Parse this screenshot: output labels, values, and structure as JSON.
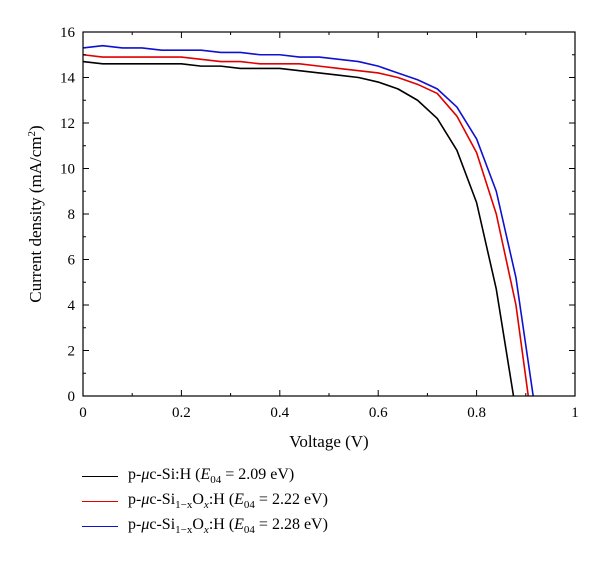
{
  "chart_data": {
    "type": "line",
    "title": "",
    "xlabel": "Voltage (V)",
    "ylabel": "Current density (mA/cm²)",
    "ylabel_parts": {
      "main": "Current density (mA/cm",
      "sup": "2",
      "end": ")"
    },
    "xlim": [
      0,
      1
    ],
    "ylim": [
      0,
      16
    ],
    "xticks": [
      "0",
      "0.2",
      "0.4",
      "0.6",
      "0.8",
      "1"
    ],
    "yticks": [
      "0",
      "2",
      "4",
      "6",
      "8",
      "10",
      "12",
      "14",
      "16"
    ],
    "xtick_values": [
      0,
      0.2,
      0.4,
      0.6,
      0.8,
      1
    ],
    "ytick_values": [
      0,
      2,
      4,
      6,
      8,
      10,
      12,
      14,
      16
    ],
    "grid": false,
    "legend_position": "bottom",
    "series": [
      {
        "name": "p-μc-Si:H (E04 = 2.09 eV)",
        "color": "#000000",
        "x": [
          0,
          0.04,
          0.08,
          0.12,
          0.16,
          0.2,
          0.24,
          0.28,
          0.32,
          0.36,
          0.4,
          0.44,
          0.48,
          0.52,
          0.56,
          0.6,
          0.64,
          0.68,
          0.72,
          0.76,
          0.8,
          0.84,
          0.875
        ],
        "y": [
          14.7,
          14.6,
          14.6,
          14.6,
          14.6,
          14.6,
          14.5,
          14.5,
          14.4,
          14.4,
          14.4,
          14.3,
          14.2,
          14.1,
          14.0,
          13.8,
          13.5,
          13.0,
          12.2,
          10.8,
          8.5,
          4.7,
          0
        ]
      },
      {
        "name": "p-μc-Si1−xOx:H (E04 = 2.22 eV)",
        "color": "#e00000",
        "x": [
          0,
          0.04,
          0.08,
          0.12,
          0.16,
          0.2,
          0.24,
          0.28,
          0.32,
          0.36,
          0.4,
          0.44,
          0.48,
          0.52,
          0.56,
          0.6,
          0.64,
          0.68,
          0.72,
          0.76,
          0.8,
          0.84,
          0.88,
          0.905
        ],
        "y": [
          15.0,
          14.9,
          14.9,
          14.9,
          14.9,
          14.9,
          14.8,
          14.7,
          14.7,
          14.6,
          14.6,
          14.6,
          14.5,
          14.4,
          14.3,
          14.2,
          14.0,
          13.7,
          13.3,
          12.3,
          10.7,
          8.0,
          4.0,
          0
        ]
      },
      {
        "name": "p-μc-Si1−xOx:H (E04 = 2.28 eV)",
        "color": "#1010d0",
        "x": [
          0,
          0.04,
          0.08,
          0.12,
          0.16,
          0.2,
          0.24,
          0.28,
          0.32,
          0.36,
          0.4,
          0.44,
          0.48,
          0.52,
          0.56,
          0.6,
          0.64,
          0.68,
          0.72,
          0.76,
          0.8,
          0.84,
          0.88,
          0.915
        ],
        "y": [
          15.3,
          15.4,
          15.3,
          15.3,
          15.2,
          15.2,
          15.2,
          15.1,
          15.1,
          15.0,
          15.0,
          14.9,
          14.9,
          14.8,
          14.7,
          14.5,
          14.2,
          13.9,
          13.5,
          12.7,
          11.3,
          9.0,
          5.2,
          0
        ]
      }
    ]
  },
  "legend": [
    {
      "prefix": "p-",
      "mu": "μ",
      "mid": "c-Si",
      "sub1": "",
      "ox": "",
      "sub2": "",
      "colon": ":H (",
      "E": "E",
      "Esub": "04",
      "value": " = 2.09 eV)"
    },
    {
      "prefix": "p-",
      "mu": "μ",
      "mid": "c-Si",
      "sub1": "1−x",
      "ox": "O",
      "sub2": "x",
      "colon": ":H (",
      "E": "E",
      "Esub": "04",
      "value": " = 2.22 eV)"
    },
    {
      "prefix": "p-",
      "mu": "μ",
      "mid": "c-Si",
      "sub1": "1−x",
      "ox": "O",
      "sub2": "x",
      "colon": ":H (",
      "E": "E",
      "Esub": "04",
      "value": " = 2.28 eV)"
    }
  ]
}
